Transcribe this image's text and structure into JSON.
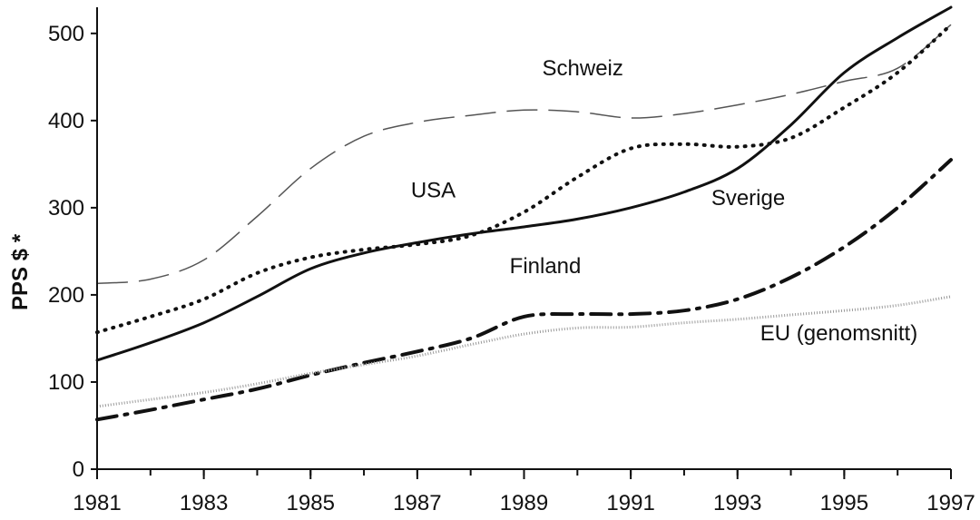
{
  "chart_data": {
    "type": "line",
    "title": "",
    "xlabel": "",
    "ylabel": "PPS $ *",
    "ylim": [
      0,
      530
    ],
    "xlim": [
      1981,
      1997
    ],
    "x_ticks": [
      "1981",
      "1983",
      "1985",
      "1987",
      "1989",
      "1991",
      "1993",
      "1995",
      "1997"
    ],
    "y_ticks": [
      "0",
      "100",
      "200",
      "300",
      "400",
      "500"
    ],
    "x": [
      1981,
      1982,
      1983,
      1984,
      1985,
      1986,
      1987,
      1988,
      1989,
      1990,
      1991,
      1992,
      1993,
      1994,
      1995,
      1996,
      1997
    ],
    "series": [
      {
        "name": "Schweiz",
        "style": "long-dash",
        "color": "#555555",
        "values": [
          213,
          218,
          240,
          290,
          345,
          382,
          398,
          406,
          412,
          410,
          403,
          408,
          418,
          430,
          445,
          460,
          510
        ]
      },
      {
        "name": "USA",
        "style": "dotted",
        "color": "#111111",
        "values": [
          157,
          175,
          195,
          225,
          243,
          252,
          258,
          268,
          295,
          335,
          368,
          373,
          370,
          380,
          415,
          455,
          510
        ]
      },
      {
        "name": "Sverige",
        "style": "solid",
        "color": "#111111",
        "values": [
          125,
          145,
          168,
          198,
          230,
          248,
          260,
          270,
          278,
          287,
          300,
          318,
          345,
          395,
          455,
          495,
          530
        ]
      },
      {
        "name": "Finland",
        "style": "dash-dot",
        "color": "#111111",
        "values": [
          57,
          68,
          80,
          92,
          108,
          122,
          135,
          150,
          175,
          178,
          178,
          182,
          195,
          220,
          255,
          300,
          355
        ]
      },
      {
        "name": "EU (genomsnitt)",
        "style": "grey-dotted",
        "color": "#9a9a9a",
        "values": [
          72,
          80,
          88,
          98,
          110,
          120,
          130,
          143,
          155,
          162,
          163,
          168,
          172,
          177,
          182,
          188,
          198
        ]
      }
    ],
    "labels": [
      {
        "series": "Schweiz",
        "text": "Schweiz",
        "x": 1990.1,
        "y": 452
      },
      {
        "series": "USA",
        "text": "USA",
        "x": 1987.3,
        "y": 312
      },
      {
        "series": "Sverige",
        "text": "Sverige",
        "x": 1993.2,
        "y": 303
      },
      {
        "series": "Finland",
        "text": "Finland",
        "x": 1989.4,
        "y": 225
      },
      {
        "series": "EU (genomsnitt)",
        "text": "EU (genomsnitt)",
        "x": 1994.9,
        "y": 148
      }
    ]
  }
}
